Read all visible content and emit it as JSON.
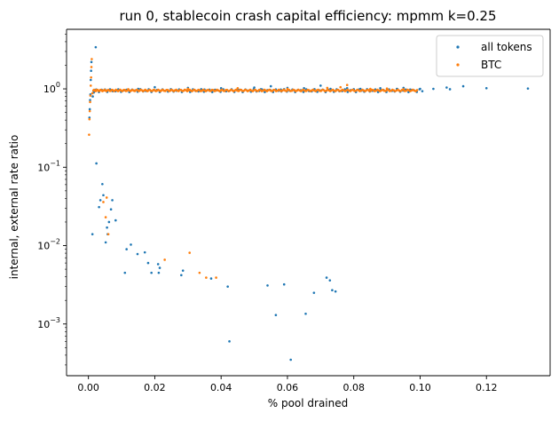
{
  "chart_data": {
    "type": "scatter",
    "title": "run 0, stablecoin crash capital efficiency: mpmm k=0.25",
    "xlabel": "% pool drained",
    "ylabel": "internal, external rate ratio",
    "xlim": [
      -0.0066,
      0.1392
    ],
    "ylim_log10": [
      -3.66,
      0.76
    ],
    "yscale": "log",
    "grid": false,
    "legend_position": "top-right",
    "x_ticks": [
      {
        "value": 0.0,
        "label": "0.00"
      },
      {
        "value": 0.02,
        "label": "0.02"
      },
      {
        "value": 0.04,
        "label": "0.04"
      },
      {
        "value": 0.06,
        "label": "0.06"
      },
      {
        "value": 0.08,
        "label": "0.08"
      },
      {
        "value": 0.1,
        "label": "0.10"
      },
      {
        "value": 0.12,
        "label": "0.12"
      }
    ],
    "y_ticks": [
      {
        "value": 0.001,
        "base": "10",
        "exp": "−3"
      },
      {
        "value": 0.01,
        "base": "10",
        "exp": "−2"
      },
      {
        "value": 0.1,
        "base": "10",
        "exp": "−1"
      },
      {
        "value": 1,
        "base": "10",
        "exp": "0"
      }
    ],
    "series": [
      {
        "name": "all tokens",
        "color": "#1f77b4",
        "points": [
          [
            0.0003,
            0.43
          ],
          [
            0.0004,
            0.55
          ],
          [
            0.0005,
            0.72
          ],
          [
            0.0006,
            0.85
          ],
          [
            0.0007,
            1.3
          ],
          [
            0.0008,
            1.7
          ],
          [
            0.0009,
            2.2
          ],
          [
            0.0013,
            0.8
          ],
          [
            0.0016,
            0.9
          ],
          [
            0.002,
            0.94
          ],
          [
            0.0022,
            3.4
          ],
          [
            0.0012,
            0.014
          ],
          [
            0.0024,
            0.112
          ],
          [
            0.0032,
            0.031
          ],
          [
            0.0036,
            0.038
          ],
          [
            0.0042,
            0.061
          ],
          [
            0.0045,
            0.044
          ],
          [
            0.0052,
            0.011
          ],
          [
            0.0056,
            0.017
          ],
          [
            0.0058,
            0.014
          ],
          [
            0.0062,
            0.02
          ],
          [
            0.0068,
            0.029
          ],
          [
            0.0072,
            0.038
          ],
          [
            0.0082,
            0.021
          ],
          [
            0.011,
            0.0045
          ],
          [
            0.0115,
            0.009
          ],
          [
            0.0128,
            0.0103
          ],
          [
            0.0148,
            0.0078
          ],
          [
            0.017,
            0.0082
          ],
          [
            0.018,
            0.006
          ],
          [
            0.019,
            0.0045
          ],
          [
            0.021,
            0.0058
          ],
          [
            0.0212,
            0.0045
          ],
          [
            0.0215,
            0.0052
          ],
          [
            0.028,
            0.0042
          ],
          [
            0.0285,
            0.0048
          ],
          [
            0.037,
            0.0038
          ],
          [
            0.042,
            0.003
          ],
          [
            0.0425,
            0.0006
          ],
          [
            0.054,
            0.0031
          ],
          [
            0.0565,
            0.0013
          ],
          [
            0.059,
            0.0032
          ],
          [
            0.061,
            0.00035
          ],
          [
            0.0655,
            0.00135
          ],
          [
            0.068,
            0.0025
          ],
          [
            0.0718,
            0.0039
          ],
          [
            0.0728,
            0.0036
          ],
          [
            0.0735,
            0.0027
          ],
          [
            0.0745,
            0.0026
          ],
          [
            0.005,
            0.98
          ],
          [
            0.015,
            1.0
          ],
          [
            0.02,
            1.05
          ],
          [
            0.025,
            0.98
          ],
          [
            0.03,
            1.03
          ],
          [
            0.035,
            0.98
          ],
          [
            0.04,
            1.02
          ],
          [
            0.045,
            0.99
          ],
          [
            0.05,
            1.04
          ],
          [
            0.052,
            0.99
          ],
          [
            0.055,
            1.08
          ],
          [
            0.058,
            0.98
          ],
          [
            0.06,
            1.03
          ],
          [
            0.062,
            0.96
          ],
          [
            0.065,
            1.02
          ],
          [
            0.068,
            0.98
          ],
          [
            0.07,
            1.1
          ],
          [
            0.073,
            1.0
          ],
          [
            0.075,
            0.97
          ],
          [
            0.078,
            1.02
          ],
          [
            0.08,
            0.99
          ],
          [
            0.082,
            1.0
          ],
          [
            0.085,
            0.98
          ],
          [
            0.088,
            1.02
          ],
          [
            0.09,
            0.97
          ],
          [
            0.093,
            1.0
          ],
          [
            0.095,
            1.03
          ],
          [
            0.097,
            0.98
          ],
          [
            0.1,
            1.0
          ],
          [
            0.104,
            1.0
          ],
          [
            0.108,
            1.04
          ],
          [
            0.109,
            0.99
          ],
          [
            0.113,
            1.08
          ],
          [
            0.12,
            1.02
          ],
          [
            0.1325,
            1.01
          ]
        ]
      },
      {
        "name": "BTC",
        "color": "#ff7f0e",
        "points": [
          [
            0.0002,
            0.26
          ],
          [
            0.0003,
            0.41
          ],
          [
            0.0004,
            0.52
          ],
          [
            0.0005,
            0.68
          ],
          [
            0.0006,
            0.82
          ],
          [
            0.0007,
            1.1
          ],
          [
            0.0008,
            1.4
          ],
          [
            0.0009,
            1.9
          ],
          [
            0.001,
            2.4
          ],
          [
            0.0012,
            0.88
          ],
          [
            0.0025,
            0.97
          ],
          [
            0.0045,
            0.036
          ],
          [
            0.0052,
            0.023
          ],
          [
            0.0055,
            0.041
          ],
          [
            0.006,
            0.014
          ],
          [
            0.023,
            0.0066
          ],
          [
            0.0305,
            0.0081
          ],
          [
            0.0335,
            0.0045
          ],
          [
            0.0355,
            0.0039
          ],
          [
            0.0385,
            0.0039
          ],
          [
            0.012,
            0.99
          ],
          [
            0.03,
            1.0
          ],
          [
            0.045,
            1.02
          ],
          [
            0.06,
            1.0
          ],
          [
            0.072,
            1.03
          ],
          [
            0.076,
            1.05
          ],
          [
            0.078,
            1.12
          ],
          [
            0.085,
            1.0
          ],
          [
            0.09,
            1.01
          ],
          [
            0.095,
            0.99
          ]
        ]
      }
    ]
  }
}
